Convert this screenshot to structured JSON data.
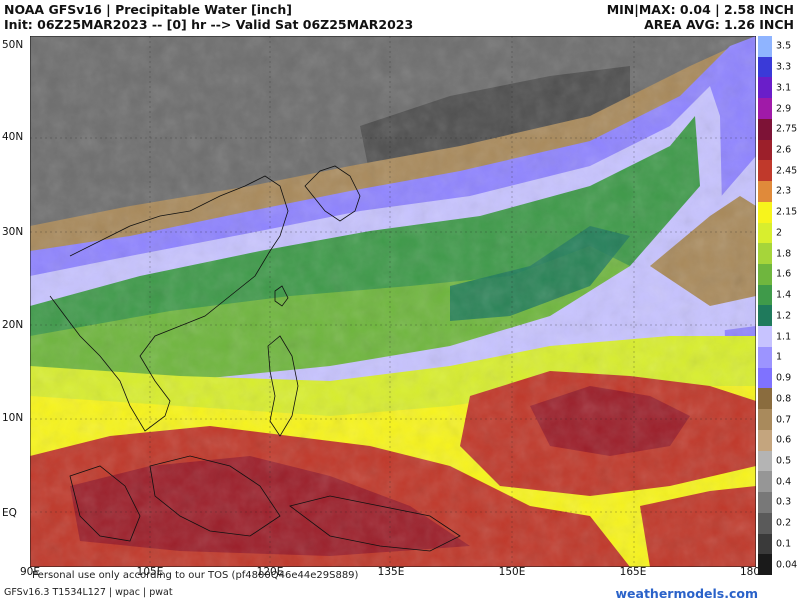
{
  "header": {
    "title": "NOAA GFSv16 | Precipitable Water [inch]",
    "init_line": "Init: 06Z25MAR2023 -- [0] hr --> Valid Sat 06Z25MAR2023",
    "minmax": "MIN|MAX: 0.04 | 2.58 INCH",
    "area_avg": "AREA AVG: 1.26 INCH"
  },
  "map": {
    "lat_labels": [
      "50N",
      "40N",
      "30N",
      "20N",
      "10N",
      "EQ"
    ],
    "lon_labels": [
      "90E",
      "105E",
      "120E",
      "135E",
      "150E",
      "165E",
      "180"
    ]
  },
  "colorbar": {
    "ticks": [
      "0.04",
      "0.1",
      "0.2",
      "0.3",
      "0.4",
      "0.5",
      "0.6",
      "0.7",
      "0.8",
      "0.9",
      "1",
      "1.1",
      "1.2",
      "1.4",
      "1.6",
      "1.8",
      "2",
      "2.15",
      "2.3",
      "2.45",
      "2.6",
      "2.75",
      "2.9",
      "3.1",
      "3.3",
      "3.5"
    ],
    "colors": [
      "#1a1a1a",
      "#3a3a3a",
      "#5a5a5a",
      "#787878",
      "#969696",
      "#b4b4b4",
      "#c4a57e",
      "#a98a5c",
      "#8a6c3e",
      "#7f72ff",
      "#9c94ff",
      "#c7c3ff",
      "#1f7a5c",
      "#3f9a4a",
      "#6fb63e",
      "#a6d53a",
      "#d8ee2e",
      "#f7f41c",
      "#e08a3a",
      "#c0392b",
      "#9c1f2a",
      "#7d1236",
      "#a01aa8",
      "#6a1ec9",
      "#3a3ad8",
      "#8fb4ff"
    ]
  },
  "footer": {
    "tos": "Personal use only according to our TOS (pf4800Q46e44e29S889)",
    "model_info": "GFSv16.3 T1534L127 | wpac | pwat",
    "brand": "weathermodels.com"
  }
}
